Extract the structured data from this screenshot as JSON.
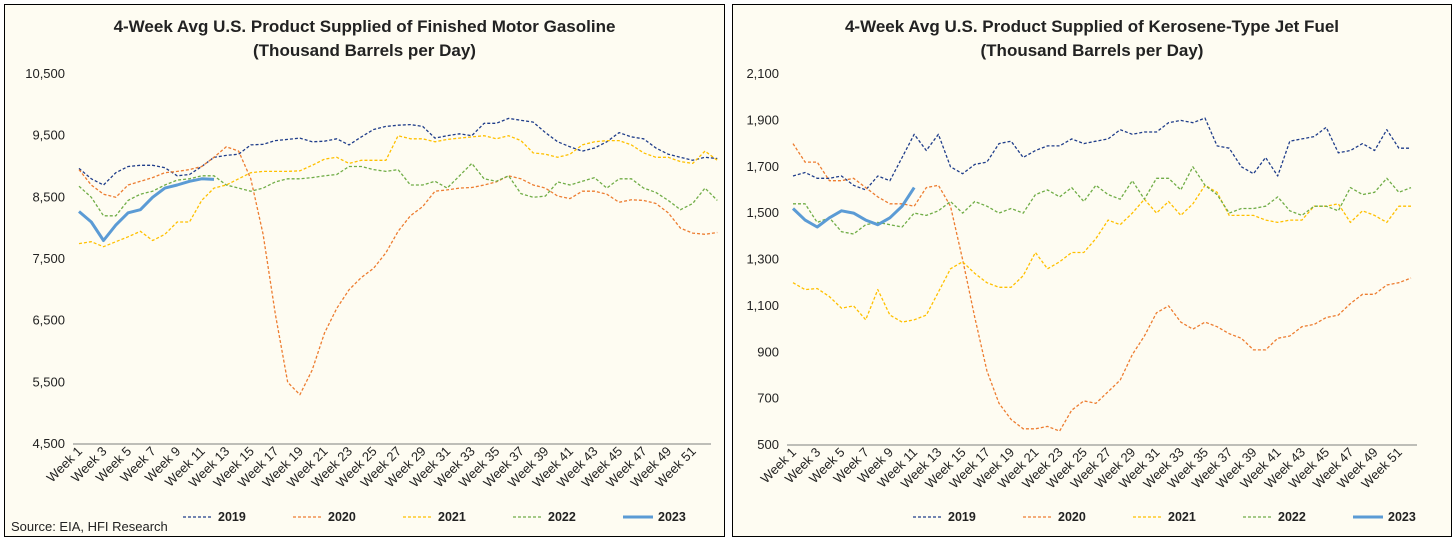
{
  "source": "Source: EIA, HFI Research",
  "colors": {
    "2019": "#1f3d8a",
    "2020": "#ed7d31",
    "2021": "#ffc000",
    "2022": "#70ad47",
    "2023": "#5b9bd5"
  },
  "chart_data": [
    {
      "type": "line",
      "title": "4-Week Avg U.S. Product Supplied of Finished Motor Gasoline  (Thousand Barrels per Day)",
      "ylim": [
        4500,
        10500
      ],
      "yticks": [
        "10,500",
        "9,500",
        "8,500",
        "7,500",
        "6,500",
        "5,500",
        "4,500"
      ],
      "ytick_values": [
        10500,
        9500,
        8500,
        7500,
        6500,
        5500,
        4500
      ],
      "xtick_labels": [
        "Week 1",
        "Week 3",
        "Week 5",
        "Week 7",
        "Week 9",
        "Week 11",
        "Week 13",
        "Week 15",
        "Week 17",
        "Week 19",
        "Week 21",
        "Week 23",
        "Week 25",
        "Week 27",
        "Week 29",
        "Week 31",
        "Week 33",
        "Week 35",
        "Week 37",
        "Week 39",
        "Week 41",
        "Week 43",
        "Week 45",
        "Week 47",
        "Week 49",
        "Week 51"
      ],
      "grid": false,
      "legend": "bottom",
      "series": [
        {
          "name": "2019",
          "values": [
            8970,
            8800,
            8700,
            8900,
            9000,
            9020,
            9020,
            8980,
            8850,
            8870,
            9000,
            9150,
            9180,
            9200,
            9350,
            9360,
            9420,
            9440,
            9460,
            9400,
            9410,
            9450,
            9350,
            9480,
            9600,
            9650,
            9670,
            9680,
            9650,
            9460,
            9500,
            9530,
            9500,
            9700,
            9700,
            9780,
            9750,
            9720,
            9550,
            9400,
            9320,
            9250,
            9300,
            9400,
            9550,
            9480,
            9450,
            9300,
            9200,
            9150,
            9100,
            9150,
            9130
          ]
        },
        {
          "name": "2020",
          "values": [
            8950,
            8700,
            8550,
            8500,
            8700,
            8760,
            8820,
            8900,
            8920,
            8950,
            9000,
            9150,
            9320,
            9250,
            8800,
            7900,
            6600,
            5500,
            5300,
            5700,
            6300,
            6700,
            7000,
            7200,
            7350,
            7600,
            7950,
            8200,
            8350,
            8600,
            8620,
            8650,
            8660,
            8700,
            8750,
            8850,
            8800,
            8700,
            8650,
            8520,
            8480,
            8600,
            8600,
            8550,
            8420,
            8460,
            8450,
            8400,
            8250,
            8000,
            7920,
            7900,
            7930
          ]
        },
        {
          "name": "2021",
          "values": [
            7750,
            7780,
            7700,
            7780,
            7860,
            7950,
            7800,
            7900,
            8100,
            8100,
            8450,
            8650,
            8700,
            8800,
            8900,
            8920,
            8920,
            8920,
            8930,
            9020,
            9120,
            9150,
            9050,
            9100,
            9100,
            9100,
            9500,
            9450,
            9450,
            9400,
            9440,
            9460,
            9480,
            9500,
            9450,
            9500,
            9420,
            9220,
            9200,
            9150,
            9200,
            9350,
            9400,
            9420,
            9420,
            9350,
            9220,
            9150,
            9150,
            9080,
            9050,
            9250,
            9100
          ]
        },
        {
          "name": "2022",
          "values": [
            8680,
            8500,
            8200,
            8200,
            8450,
            8550,
            8600,
            8700,
            8780,
            8800,
            8850,
            8850,
            8700,
            8650,
            8600,
            8650,
            8750,
            8800,
            8800,
            8820,
            8850,
            8870,
            9000,
            9000,
            8950,
            8920,
            8950,
            8700,
            8700,
            8760,
            8650,
            8850,
            9050,
            8800,
            8760,
            8850,
            8560,
            8500,
            8520,
            8750,
            8700,
            8760,
            8820,
            8650,
            8800,
            8800,
            8650,
            8580,
            8450,
            8300,
            8400,
            8650,
            8450
          ]
        },
        {
          "name": "2023",
          "values": [
            8270,
            8100,
            7800,
            8050,
            8250,
            8300,
            8500,
            8650,
            8700,
            8760,
            8800,
            8790
          ]
        }
      ]
    },
    {
      "type": "line",
      "title": "4-Week Avg U.S. Product Supplied of Kerosene-Type Jet Fuel  (Thousand Barrels per Day)",
      "ylim": [
        500,
        2100
      ],
      "yticks": [
        "2,100",
        "1,900",
        "1,700",
        "1,500",
        "1,300",
        "1,100",
        "900",
        "700",
        "500"
      ],
      "ytick_values": [
        2100,
        1900,
        1700,
        1500,
        1300,
        1100,
        900,
        700,
        500
      ],
      "xtick_labels": [
        "Week 1",
        "Week 3",
        "Week 5",
        "Week 7",
        "Week 9",
        "Week 11",
        "Week 13",
        "Week 15",
        "Week 17",
        "Week 19",
        "Week 21",
        "Week 23",
        "Week 25",
        "Week 27",
        "Week 29",
        "Week 31",
        "Week 33",
        "Week 35",
        "Week 37",
        "Week 39",
        "Week 41",
        "Week 43",
        "Week 45",
        "Week 47",
        "Week 49",
        "Week 51"
      ],
      "grid": false,
      "legend": "bottom",
      "series": [
        {
          "name": "2019",
          "values": [
            1660,
            1675,
            1650,
            1650,
            1660,
            1620,
            1600,
            1660,
            1640,
            1740,
            1840,
            1770,
            1840,
            1700,
            1670,
            1710,
            1720,
            1800,
            1810,
            1740,
            1770,
            1790,
            1790,
            1820,
            1800,
            1810,
            1820,
            1860,
            1840,
            1850,
            1850,
            1890,
            1900,
            1890,
            1910,
            1790,
            1780,
            1700,
            1670,
            1740,
            1660,
            1810,
            1820,
            1830,
            1870,
            1760,
            1770,
            1800,
            1770,
            1860,
            1780,
            1780
          ]
        },
        {
          "name": "2020",
          "values": [
            1800,
            1720,
            1720,
            1640,
            1640,
            1650,
            1610,
            1570,
            1540,
            1540,
            1530,
            1610,
            1620,
            1530,
            1300,
            1050,
            820,
            680,
            610,
            570,
            570,
            580,
            560,
            650,
            690,
            680,
            730,
            780,
            890,
            970,
            1070,
            1100,
            1030,
            1000,
            1030,
            1010,
            980,
            960,
            910,
            910,
            960,
            970,
            1010,
            1020,
            1050,
            1060,
            1110,
            1150,
            1150,
            1190,
            1200,
            1220
          ]
        },
        {
          "name": "2021",
          "values": [
            1200,
            1170,
            1175,
            1140,
            1090,
            1100,
            1040,
            1170,
            1060,
            1030,
            1040,
            1060,
            1160,
            1260,
            1290,
            1240,
            1200,
            1180,
            1180,
            1230,
            1330,
            1260,
            1290,
            1330,
            1330,
            1390,
            1470,
            1450,
            1500,
            1560,
            1500,
            1550,
            1490,
            1540,
            1620,
            1590,
            1490,
            1490,
            1490,
            1470,
            1460,
            1470,
            1470,
            1530,
            1530,
            1540,
            1460,
            1510,
            1490,
            1460,
            1530,
            1530
          ]
        },
        {
          "name": "2022",
          "values": [
            1540,
            1540,
            1460,
            1480,
            1420,
            1410,
            1450,
            1460,
            1450,
            1440,
            1500,
            1490,
            1510,
            1550,
            1500,
            1550,
            1530,
            1500,
            1520,
            1500,
            1580,
            1600,
            1570,
            1610,
            1550,
            1620,
            1580,
            1560,
            1640,
            1560,
            1650,
            1650,
            1600,
            1700,
            1620,
            1580,
            1500,
            1520,
            1520,
            1530,
            1570,
            1510,
            1490,
            1530,
            1530,
            1510,
            1610,
            1580,
            1590,
            1650,
            1590,
            1610
          ]
        },
        {
          "name": "2023",
          "values": [
            1520,
            1470,
            1440,
            1480,
            1510,
            1500,
            1470,
            1450,
            1480,
            1530,
            1610
          ]
        }
      ]
    }
  ]
}
